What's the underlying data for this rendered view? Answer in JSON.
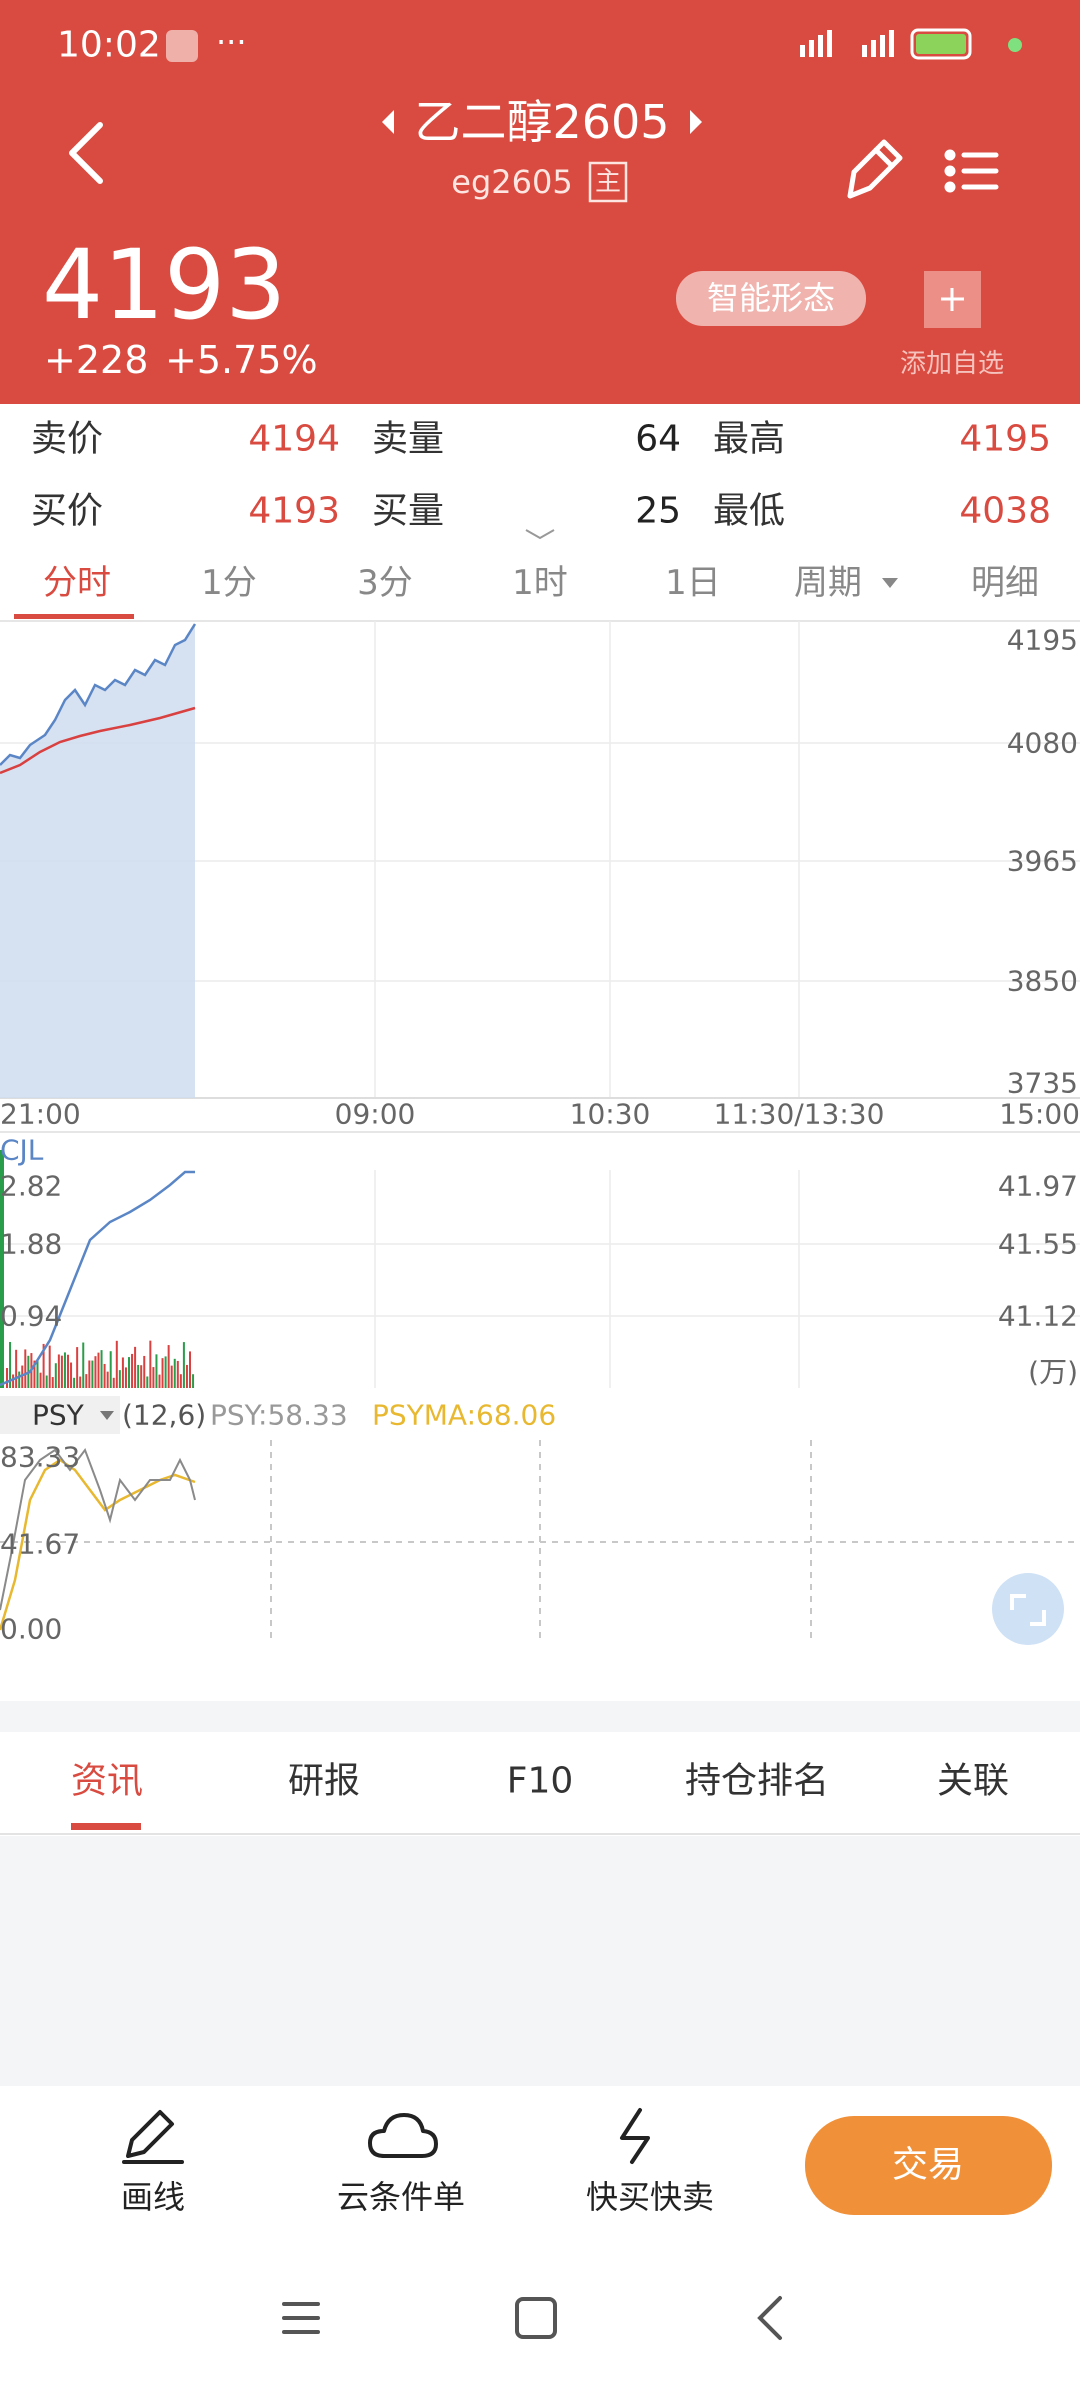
{
  "status_bar": {
    "time": "10:02"
  },
  "header": {
    "title": "乙二醇2605",
    "code": "eg2605",
    "main_tag": "主",
    "price": "4193",
    "change": "+228",
    "change_pct": "+5.75%",
    "smart_pattern": "智能形态",
    "add_watch": "添加自选"
  },
  "quotes": {
    "rows": [
      [
        "卖价",
        "4194",
        "卖量",
        "64",
        "最高",
        "4195"
      ],
      [
        "买价",
        "4193",
        "买量",
        "25",
        "最低",
        "4038"
      ]
    ]
  },
  "period_tabs": [
    "分时",
    "1分",
    "3分",
    "1时",
    "1日",
    "周期",
    "明细"
  ],
  "price_chart": {
    "y_labels": [
      "4195",
      "4080",
      "3965",
      "3850",
      "3735"
    ],
    "x_labels": [
      "21:00",
      "09:00",
      "10:30",
      "11:30/13:30",
      "15:00"
    ]
  },
  "volume_chart": {
    "name": "CJL",
    "left_labels": [
      "2.82",
      "1.88",
      "0.94"
    ],
    "right_labels": [
      "41.97",
      "41.55",
      "41.12"
    ],
    "unit": "(万)"
  },
  "psy": {
    "name": "PSY",
    "params": "(12,6)",
    "psy": "PSY:58.33",
    "psyma": "PSYMA:68.06",
    "labels": [
      "83.33",
      "41.67",
      "0.00"
    ]
  },
  "info_tabs": [
    "资讯",
    "研报",
    "F10",
    "持仓排名",
    "关联"
  ],
  "bottom_bar": {
    "items": [
      "画线",
      "云条件单",
      "快买快卖"
    ],
    "trade": "交易"
  }
}
